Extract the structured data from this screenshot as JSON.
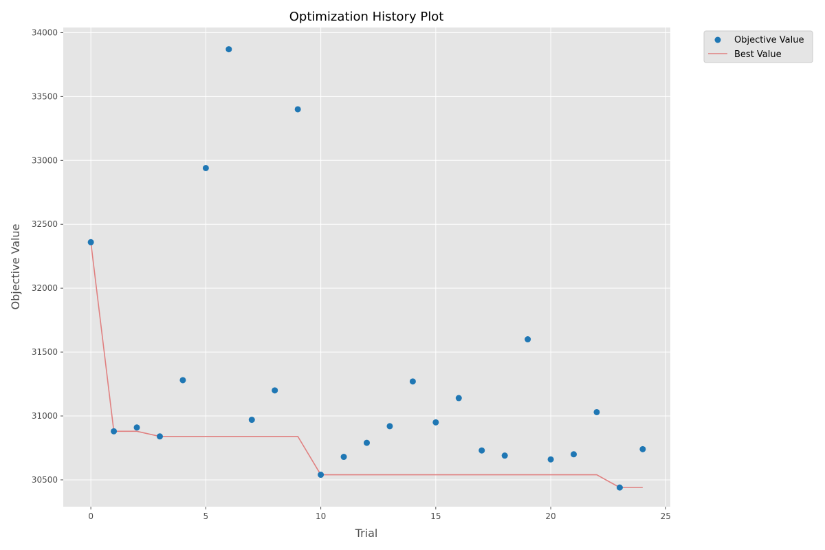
{
  "chart_data": {
    "type": "scatter",
    "title": "Optimization History Plot",
    "xlabel": "Trial",
    "ylabel": "Objective Value",
    "xlim": [
      -1.2,
      25.2
    ],
    "ylim": [
      30290,
      34040
    ],
    "xticks": [
      0,
      5,
      10,
      15,
      20,
      25
    ],
    "yticks": [
      30500,
      31000,
      31500,
      32000,
      32500,
      33000,
      33500,
      34000
    ],
    "grid": true,
    "legend_position": "outside top-right",
    "series": [
      {
        "name": "Objective Value",
        "kind": "scatter",
        "color": "#1f77b4",
        "x": [
          0,
          1,
          2,
          3,
          4,
          5,
          6,
          7,
          8,
          9,
          10,
          11,
          12,
          13,
          14,
          15,
          16,
          17,
          18,
          19,
          20,
          21,
          22,
          23,
          24
        ],
        "y": [
          32360,
          30880,
          30910,
          30840,
          31280,
          32940,
          33870,
          30970,
          31200,
          33400,
          30540,
          30680,
          30790,
          30920,
          31270,
          30950,
          31140,
          30730,
          30690,
          31600,
          30660,
          30700,
          31030,
          30440,
          30740
        ]
      },
      {
        "name": "Best Value",
        "kind": "line",
        "color": "#e08080",
        "x": [
          0,
          1,
          2,
          3,
          4,
          5,
          6,
          7,
          8,
          9,
          10,
          11,
          12,
          13,
          14,
          15,
          16,
          17,
          18,
          19,
          20,
          21,
          22,
          23,
          24
        ],
        "y": [
          32360,
          30880,
          30880,
          30840,
          30840,
          30840,
          30840,
          30840,
          30840,
          30840,
          30540,
          30540,
          30540,
          30540,
          30540,
          30540,
          30540,
          30540,
          30540,
          30540,
          30540,
          30540,
          30540,
          30440,
          30440
        ]
      }
    ]
  },
  "style": {
    "plot_background": "#e5e5e5",
    "grid_color": "#ffffff",
    "text_color": "#4d4d4d"
  }
}
